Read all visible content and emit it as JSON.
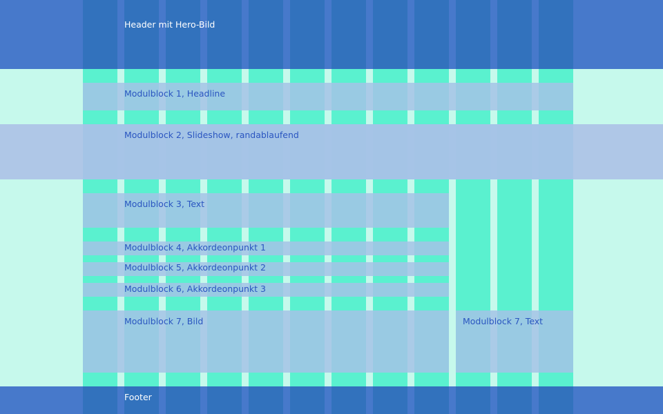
{
  "grid": {
    "columns": 12,
    "colors": {
      "background": "#c6f9ec",
      "column": "#5af1cf",
      "header_footer": "#4a76c4",
      "module_block": "#a2c9de",
      "fullwidth_band": "#b5cbe5",
      "label_dark": "#2a55c0",
      "label_light": "#ffffff"
    }
  },
  "header": {
    "label": "Header mit Hero-Bild"
  },
  "modules": [
    {
      "id": 1,
      "label": "Modulblock 1, Headline"
    },
    {
      "id": 2,
      "label": "Modulblock 2, Slideshow, randablaufend"
    },
    {
      "id": 3,
      "label": "Modulblock 3, Text"
    },
    {
      "id": 4,
      "label": "Modulblock 4, Akkordeonpunkt 1"
    },
    {
      "id": 5,
      "label": "Modulblock 5, Akkordeonpunkt 2"
    },
    {
      "id": 6,
      "label": "Modulblock 6, Akkordeonpunkt 3"
    },
    {
      "id": 7,
      "label": "Modulblock 7, Bild"
    },
    {
      "id": 8,
      "label": "Modulblock 7, Text"
    }
  ],
  "footer": {
    "label": "Footer"
  }
}
